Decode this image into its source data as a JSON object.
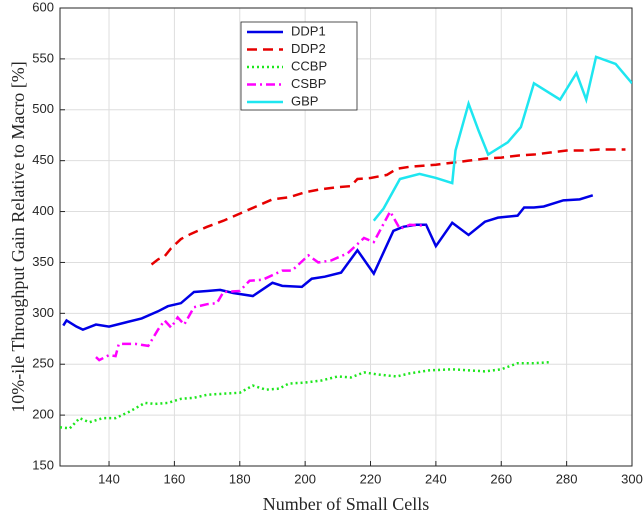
{
  "chart_data": {
    "type": "line",
    "xlabel": "Number of Small Cells",
    "ylabel": "10%-ile Throughput Gain Relative to Macro [%]",
    "xlim": [
      125,
      300
    ],
    "xticks": [
      140,
      160,
      180,
      200,
      220,
      240,
      260,
      280,
      300
    ],
    "ylim": [
      150,
      600
    ],
    "yticks": [
      150,
      200,
      250,
      300,
      350,
      400,
      450,
      500,
      550,
      600
    ],
    "grid": true,
    "legend": "top-center",
    "series": [
      {
        "name": "DDP1",
        "color": "#0000e6",
        "linestyle": "solid",
        "x": [
          126,
          127,
          130,
          132,
          136,
          140,
          145,
          150,
          155,
          158,
          162,
          166,
          170,
          174,
          178,
          184,
          190,
          193,
          199,
          202,
          206,
          211,
          216,
          221,
          227,
          230,
          234,
          237,
          240,
          245,
          250,
          255,
          259,
          262,
          265,
          267,
          270,
          273,
          279,
          284,
          288
        ],
        "values": [
          288,
          293,
          287,
          284,
          289,
          287,
          291,
          295,
          302,
          307,
          310,
          321,
          322,
          323,
          320,
          317,
          330,
          327,
          326,
          334,
          336,
          340,
          362,
          339,
          381,
          385,
          387,
          387,
          366,
          389,
          377,
          390,
          394,
          395,
          396,
          404,
          404,
          405,
          411,
          412,
          416
        ]
      },
      {
        "name": "DDP2",
        "color": "#e60000",
        "linestyle": "dashed",
        "x": [
          153,
          155,
          157,
          159,
          162,
          165,
          170,
          175,
          180,
          185,
          190,
          195,
          200,
          205,
          210,
          214,
          216,
          220,
          225,
          228,
          232,
          236,
          240,
          245,
          250,
          255,
          260,
          265,
          270,
          275,
          280,
          285,
          290,
          298
        ],
        "values": [
          348,
          353,
          356,
          364,
          373,
          378,
          385,
          391,
          398,
          405,
          412,
          414,
          419,
          422,
          424,
          425,
          432,
          433,
          436,
          442,
          444,
          445,
          446,
          448,
          450,
          452,
          453,
          455,
          456,
          458,
          460,
          460,
          461,
          461
        ]
      },
      {
        "name": "CCBP",
        "color": "#1ee61e",
        "linestyle": "dotted",
        "x": [
          125,
          128,
          131,
          134,
          138,
          142,
          146,
          151,
          154,
          158,
          162,
          166,
          170,
          175,
          180,
          184,
          188,
          192,
          195,
          200,
          205,
          210,
          214,
          218,
          222,
          228,
          232,
          238,
          245,
          250,
          255,
          260,
          265,
          270,
          275
        ],
        "values": [
          188,
          187,
          197,
          193,
          197,
          197,
          203,
          212,
          211,
          212,
          216,
          217,
          220,
          221,
          222,
          229,
          225,
          226,
          231,
          232,
          234,
          238,
          237,
          242,
          240,
          238,
          241,
          244,
          245,
          244,
          243,
          245,
          251,
          251,
          252
        ]
      },
      {
        "name": "CSBP",
        "color": "#ff00ff",
        "linestyle": "dashdot",
        "x": [
          136,
          137,
          140,
          142,
          143,
          148,
          152,
          155,
          157,
          159,
          161,
          163,
          166,
          170,
          173,
          175,
          180,
          183,
          187,
          193,
          196,
          201,
          204,
          208,
          213,
          218,
          221,
          226,
          229,
          232,
          237
        ],
        "values": [
          257,
          254,
          259,
          258,
          270,
          270,
          268,
          284,
          293,
          286,
          296,
          289,
          306,
          309,
          310,
          321,
          322,
          332,
          333,
          342,
          342,
          357,
          350,
          352,
          359,
          374,
          370,
          400,
          383,
          387,
          386
        ]
      },
      {
        "name": "GBP",
        "color": "#1ee6f0",
        "linestyle": "solid",
        "x": [
          221,
          224,
          229,
          235,
          240,
          245,
          246,
          250,
          253,
          256,
          262,
          266,
          270,
          278,
          283,
          286,
          289,
          295,
          300
        ],
        "values": [
          391,
          403,
          432,
          437,
          433,
          428,
          460,
          506,
          480,
          456,
          468,
          483,
          526,
          510,
          536,
          510,
          552,
          545,
          526
        ]
      }
    ]
  }
}
